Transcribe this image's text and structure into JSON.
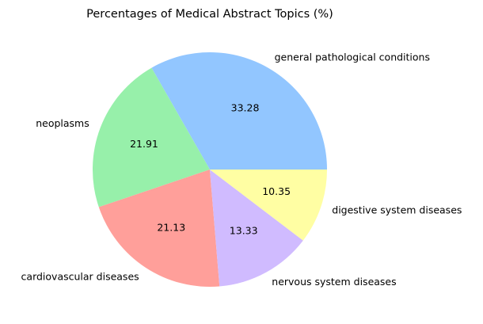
{
  "chart_data": {
    "type": "pie",
    "title": "Percentages of Medical Abstract Topics (%)",
    "slices": [
      {
        "label": "general pathological conditions",
        "value": 33.28,
        "value_label": "33.28",
        "color": "#92c6ff"
      },
      {
        "label": "neoplasms",
        "value": 21.91,
        "value_label": "21.91",
        "color": "#97f0aa"
      },
      {
        "label": "cardiovascular diseases",
        "value": 21.13,
        "value_label": "21.13",
        "color": "#ff9f9a"
      },
      {
        "label": "nervous system diseases",
        "value": 13.33,
        "value_label": "13.33",
        "color": "#d0bbff"
      },
      {
        "label": "digestive system diseases",
        "value": 10.35,
        "value_label": "10.35",
        "color": "#fffea3"
      }
    ],
    "start_angle": 0,
    "direction": "counterclockwise",
    "legend": "none",
    "grid": false
  }
}
